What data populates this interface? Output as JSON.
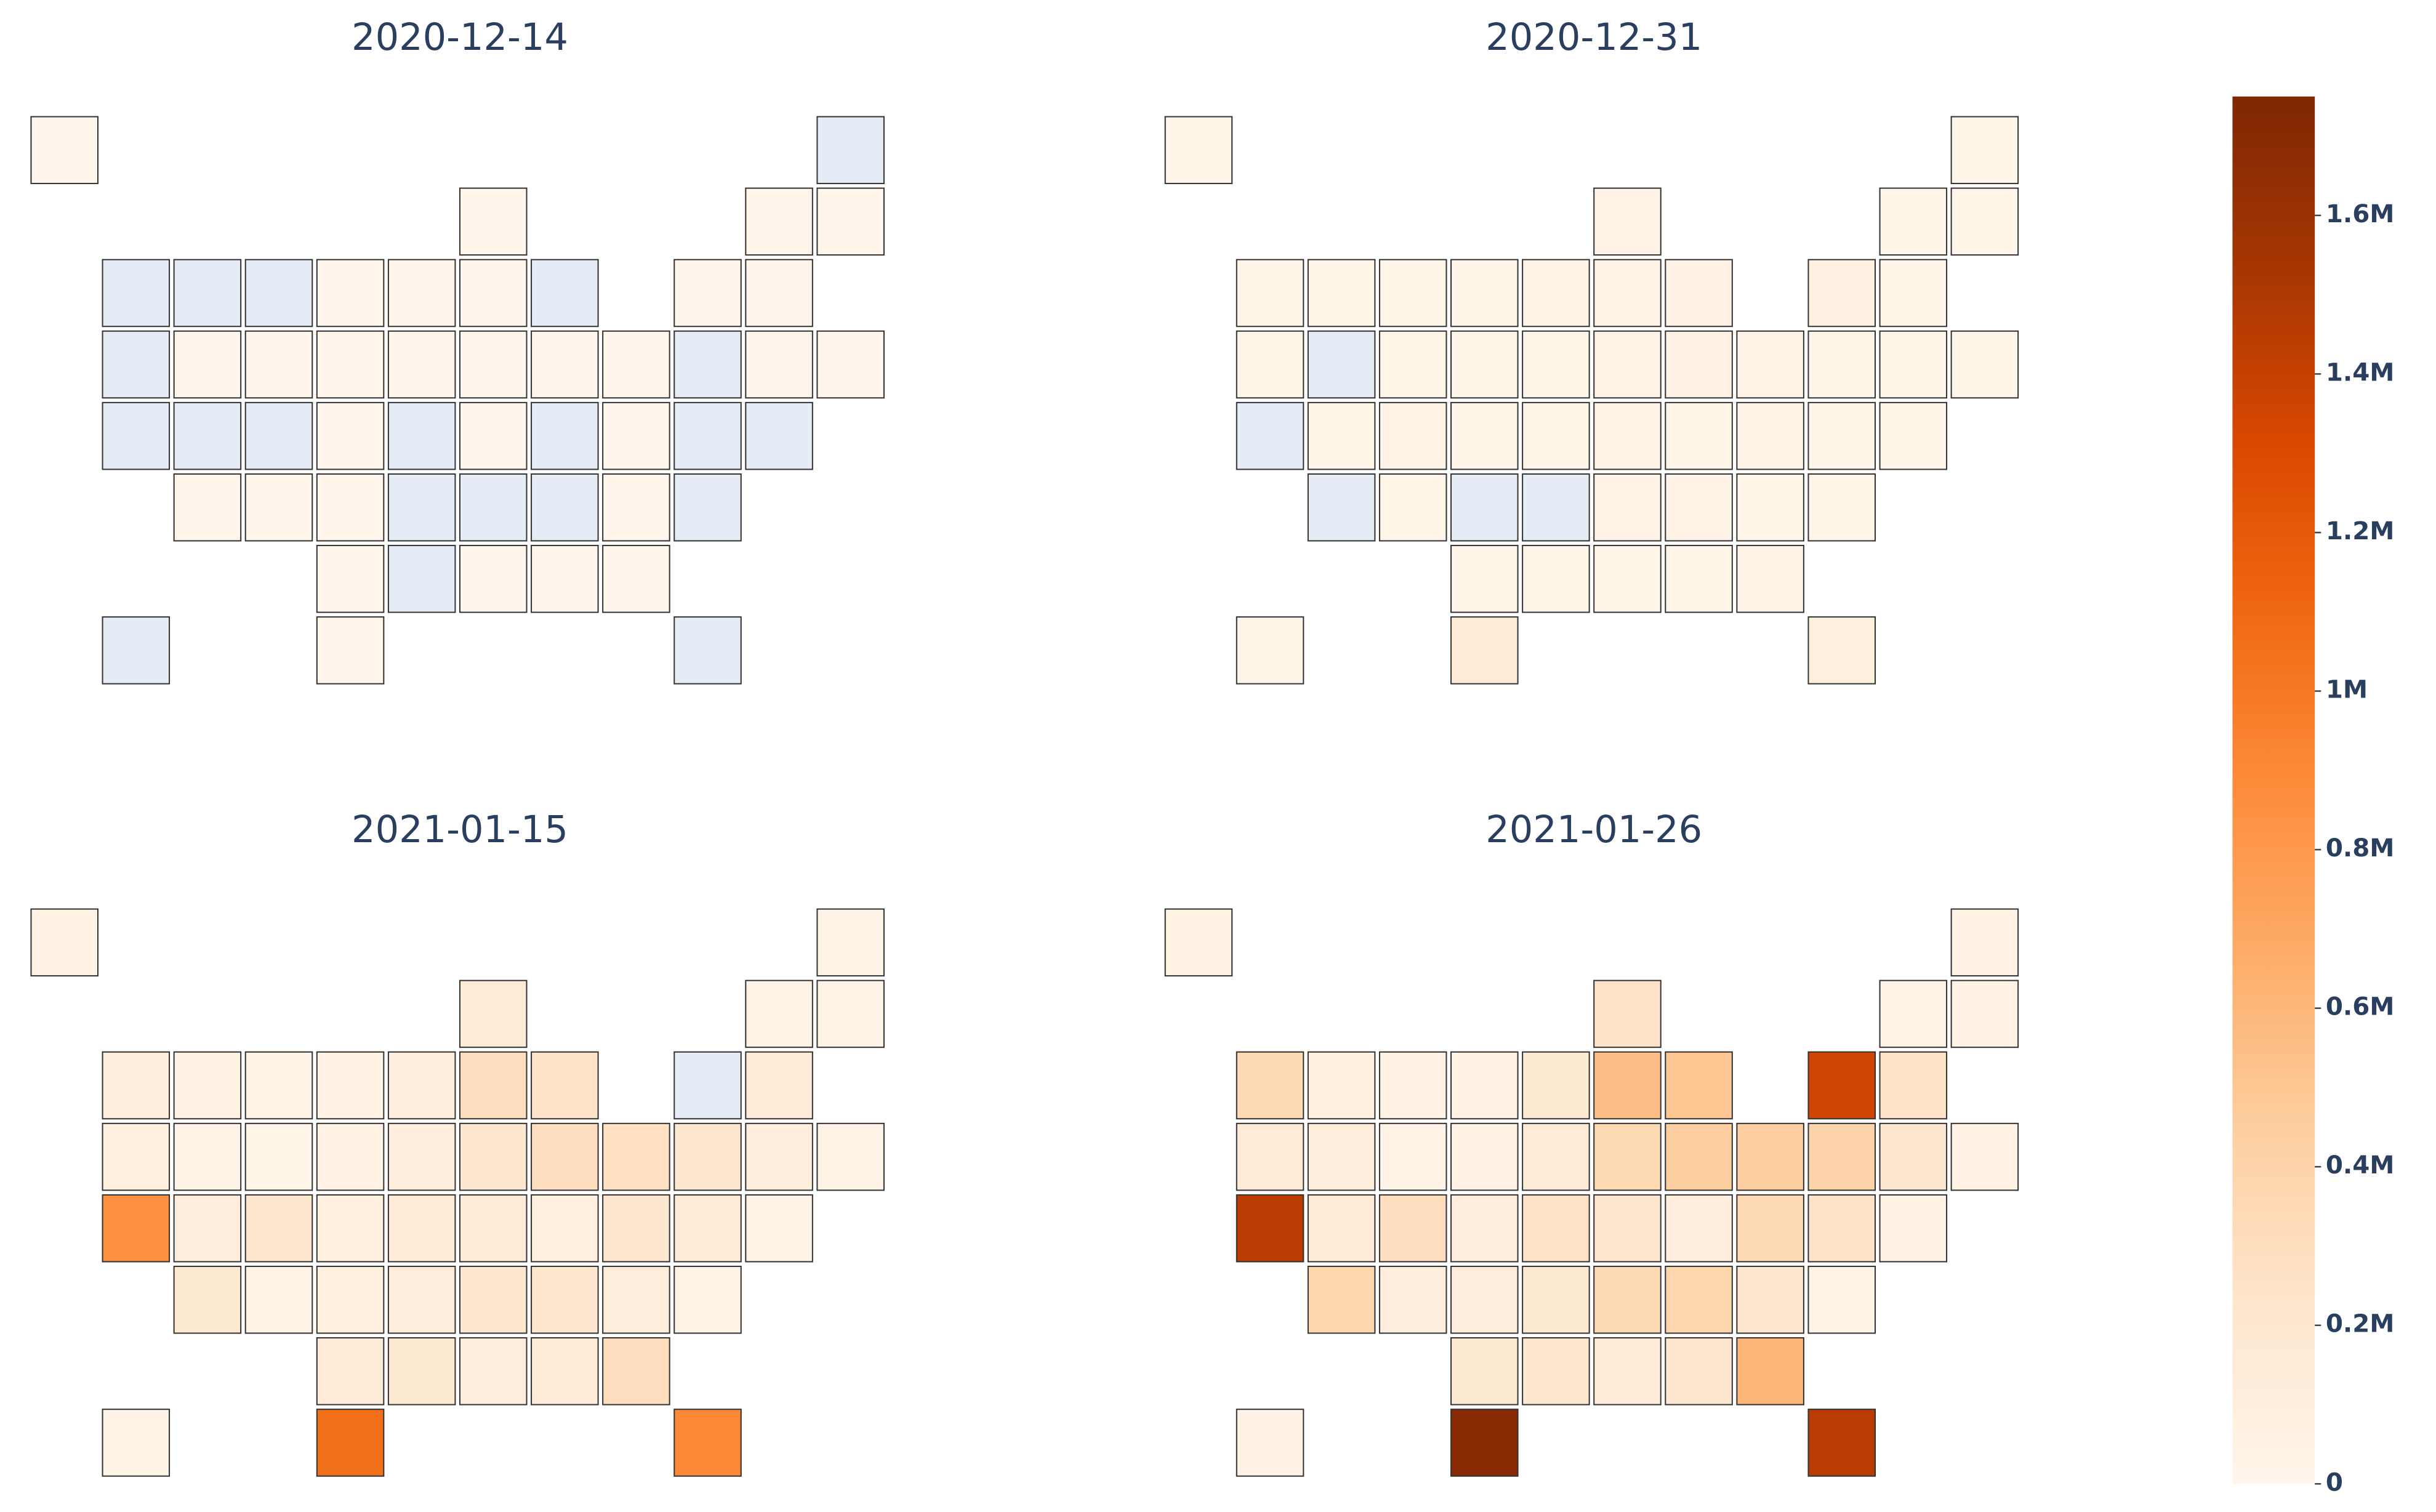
{
  "chart_data": {
    "type": "choropleth",
    "colorscale": [
      [
        0,
        "#fff5eb"
      ],
      [
        0.125,
        "#fee6ce"
      ],
      [
        0.25,
        "#fdd0a2"
      ],
      [
        0.375,
        "#fdae6b"
      ],
      [
        0.5,
        "#fd8d3c"
      ],
      [
        0.625,
        "#f16913"
      ],
      [
        0.75,
        "#d94801"
      ],
      [
        0.875,
        "#a63603"
      ],
      [
        1,
        "#7f2704"
      ]
    ],
    "null_color": "#e5ecf6",
    "zlim": [
      0,
      1750000
    ],
    "zticks": [
      0,
      {
        "value": 200000,
        "label": "0.2M"
      },
      {
        "value": 400000,
        "label": "0.4M"
      },
      {
        "value": 600000,
        "label": "0.6M"
      },
      {
        "value": 800000,
        "label": "0.8M"
      },
      {
        "value": 1000000,
        "label": "1M"
      },
      {
        "value": 1200000,
        "label": "1.2M"
      },
      {
        "value": 1400000,
        "label": "1.4M"
      },
      {
        "value": 1600000,
        "label": "1.6M"
      }
    ],
    "maps": [
      {
        "title": "2020-12-14",
        "values": [
          5000,
          null,
          5000,
          5000,
          5000,
          null,
          null,
          null,
          5000,
          5000,
          5000,
          null,
          5000,
          5000,
          null,
          5000,
          5000,
          5000,
          5000,
          5000,
          5000,
          5000,
          null,
          5000,
          5000,
          null,
          null,
          null,
          5000,
          null,
          5000,
          null,
          5000,
          null,
          null,
          5000,
          5000,
          5000,
          null,
          null,
          null,
          5000,
          null,
          5000,
          null,
          5000,
          5000,
          5000,
          null,
          5000,
          null
        ]
      },
      {
        "title": "2020-12-31",
        "values": [
          20000,
          20000,
          30000,
          20000,
          20000,
          20000,
          20000,
          20000,
          20000,
          25000,
          40000,
          50000,
          70000,
          20000,
          20000,
          null,
          20000,
          20000,
          20000,
          30000,
          50000,
          40000,
          20000,
          20000,
          20000,
          null,
          20000,
          30000,
          20000,
          20000,
          30000,
          20000,
          30000,
          20000,
          20000,
          null,
          20000,
          null,
          null,
          30000,
          30000,
          20000,
          20000,
          20000,
          20000,
          20000,
          20000,
          30000,
          20000,
          150000,
          90000
        ]
      },
      {
        "title": "2021-01-15",
        "values": [
          50000,
          40000,
          150000,
          30000,
          40000,
          120000,
          50000,
          40000,
          50000,
          100000,
          300000,
          250000,
          null,
          150000,
          80000,
          30000,
          20000,
          50000,
          100000,
          200000,
          300000,
          280000,
          200000,
          100000,
          40000,
          850000,
          100000,
          200000,
          80000,
          150000,
          150000,
          80000,
          200000,
          150000,
          40000,
          180000,
          40000,
          80000,
          120000,
          200000,
          200000,
          120000,
          30000,
          150000,
          180000,
          100000,
          150000,
          300000,
          40000,
          1050000,
          900000
        ]
      },
      {
        "title": "2021-01-26",
        "values": [
          60000,
          50000,
          250000,
          40000,
          60000,
          350000,
          80000,
          60000,
          60000,
          180000,
          550000,
          500000,
          1350000,
          250000,
          150000,
          120000,
          30000,
          60000,
          150000,
          350000,
          450000,
          450000,
          400000,
          200000,
          60000,
          1450000,
          150000,
          300000,
          120000,
          250000,
          220000,
          100000,
          350000,
          250000,
          60000,
          380000,
          100000,
          120000,
          180000,
          350000,
          380000,
          200000,
          40000,
          180000,
          200000,
          150000,
          200000,
          600000,
          60000,
          1700000,
          1450000
        ]
      }
    ]
  }
}
